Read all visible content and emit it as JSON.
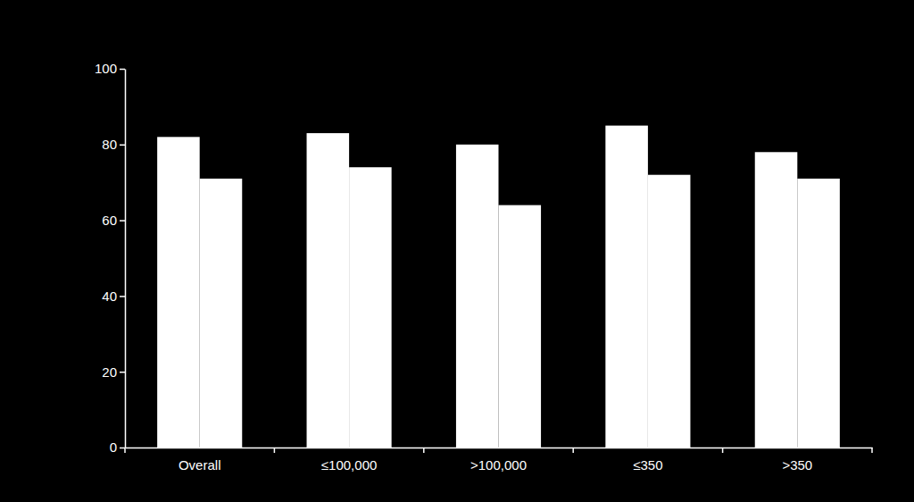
{
  "chart_data": {
    "type": "bar",
    "categories": [
      "Overall",
      "≤100,000",
      ">100,000",
      "≤350",
      ">350"
    ],
    "series": [
      {
        "color": "#ffffff",
        "values": [
          82,
          83,
          80,
          85,
          78
        ]
      },
      {
        "color": "#ffffff",
        "values": [
          71,
          74,
          64,
          72,
          71
        ]
      }
    ],
    "ylim": [
      0,
      100
    ],
    "yticks": [
      0,
      20,
      40,
      60,
      80,
      100
    ],
    "grid": false
  }
}
